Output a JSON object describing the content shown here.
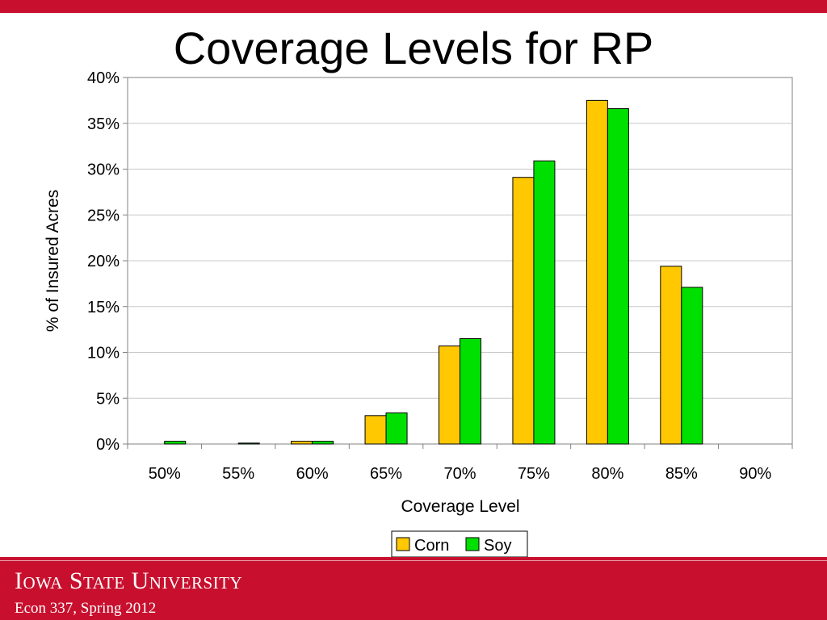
{
  "slide": {
    "title": "Coverage Levels for RP",
    "footer_university": "Iowa State University",
    "footer_course": "Econ 337, Spring 2012"
  },
  "colors": {
    "brand_red": "#c8102e",
    "corn": "#ffc800",
    "soy": "#00e000"
  },
  "chart_data": {
    "type": "bar",
    "title": "Coverage Levels for RP",
    "xlabel": "Coverage Level",
    "ylabel": "% of Insured Acres",
    "categories": [
      "50%",
      "55%",
      "60%",
      "65%",
      "70%",
      "75%",
      "80%",
      "85%",
      "90%"
    ],
    "series": [
      {
        "name": "Corn",
        "color": "#ffc800",
        "values": [
          0.0,
          0.0,
          0.3,
          3.1,
          10.7,
          29.1,
          37.5,
          19.4,
          0.0
        ]
      },
      {
        "name": "Soy",
        "color": "#00e000",
        "values": [
          0.3,
          0.1,
          0.3,
          3.4,
          11.5,
          30.9,
          36.6,
          17.1,
          0.0
        ]
      }
    ],
    "ylim": [
      0,
      40
    ],
    "yticks": [
      0,
      5,
      10,
      15,
      20,
      25,
      30,
      35,
      40
    ],
    "ytick_labels": [
      "0%",
      "5%",
      "10%",
      "15%",
      "20%",
      "25%",
      "30%",
      "35%",
      "40%"
    ],
    "grid": true,
    "legend_position": "bottom"
  }
}
